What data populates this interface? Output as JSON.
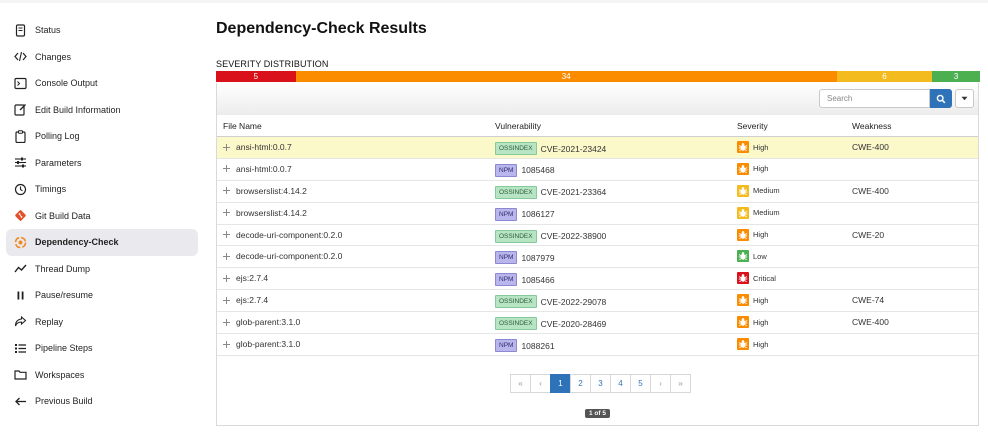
{
  "sidebar": {
    "items": [
      {
        "label": "Status",
        "icon": "document-icon"
      },
      {
        "label": "Changes",
        "icon": "code-icon"
      },
      {
        "label": "Console Output",
        "icon": "terminal-icon"
      },
      {
        "label": "Edit Build Information",
        "icon": "edit-icon"
      },
      {
        "label": "Polling Log",
        "icon": "clipboard-icon"
      },
      {
        "label": "Parameters",
        "icon": "sliders-icon"
      },
      {
        "label": "Timings",
        "icon": "clock-icon"
      },
      {
        "label": "Git Build Data",
        "icon": "git-icon"
      },
      {
        "label": "Dependency-Check",
        "icon": "dependency-check-icon",
        "active": true
      },
      {
        "label": "Thread Dump",
        "icon": "chart-line-icon"
      },
      {
        "label": "Pause/resume",
        "icon": "pause-icon"
      },
      {
        "label": "Replay",
        "icon": "replay-icon"
      },
      {
        "label": "Pipeline Steps",
        "icon": "list-icon"
      },
      {
        "label": "Workspaces",
        "icon": "folder-icon"
      },
      {
        "label": "Previous Build",
        "icon": "arrow-left-icon"
      }
    ]
  },
  "main": {
    "title": "Dependency-Check Results",
    "severity_label": "SEVERITY DISTRIBUTION",
    "severity_distribution": [
      {
        "label": "5",
        "count": 5,
        "color": "#d9111b"
      },
      {
        "label": "34",
        "count": 34,
        "color": "#fb8c00"
      },
      {
        "label": "6",
        "count": 6,
        "color": "#f4bb1f"
      },
      {
        "label": "3",
        "count": 3,
        "color": "#4caf50"
      }
    ],
    "search_placeholder": "Search",
    "columns": [
      "File Name",
      "Vulnerability",
      "Severity",
      "Weakness"
    ],
    "rows": [
      {
        "file": "ansi-html:0.0.7",
        "source": "OSSINDEX",
        "vuln": "CVE-2021-23424",
        "severity": "High",
        "weakness": "CWE-400",
        "highlight": true
      },
      {
        "file": "ansi-html:0.0.7",
        "source": "NPM",
        "vuln": "1085468",
        "severity": "High",
        "weakness": ""
      },
      {
        "file": "browserslist:4.14.2",
        "source": "OSSINDEX",
        "vuln": "CVE-2021-23364",
        "severity": "Medium",
        "weakness": "CWE-400"
      },
      {
        "file": "browserslist:4.14.2",
        "source": "NPM",
        "vuln": "1086127",
        "severity": "Medium",
        "weakness": ""
      },
      {
        "file": "decode-uri-component:0.2.0",
        "source": "OSSINDEX",
        "vuln": "CVE-2022-38900",
        "severity": "High",
        "weakness": "CWE-20"
      },
      {
        "file": "decode-uri-component:0.2.0",
        "source": "NPM",
        "vuln": "1087979",
        "severity": "Low",
        "weakness": ""
      },
      {
        "file": "ejs:2.7.4",
        "source": "NPM",
        "vuln": "1085466",
        "severity": "Critical",
        "weakness": ""
      },
      {
        "file": "ejs:2.7.4",
        "source": "OSSINDEX",
        "vuln": "CVE-2022-29078",
        "severity": "High",
        "weakness": "CWE-74"
      },
      {
        "file": "glob-parent:3.1.0",
        "source": "OSSINDEX",
        "vuln": "CVE-2020-28469",
        "severity": "High",
        "weakness": "CWE-400"
      },
      {
        "file": "glob-parent:3.1.0",
        "source": "NPM",
        "vuln": "1088261",
        "severity": "High",
        "weakness": ""
      }
    ],
    "severity_colors": {
      "Critical": "#d9111b",
      "High": "#fb8c00",
      "Medium": "#f4bb1f",
      "Low": "#4caf50"
    },
    "pagination": [
      "«",
      "‹",
      "1",
      "2",
      "3",
      "4",
      "5",
      "›",
      "»"
    ],
    "current_page": "1",
    "page_info": "1 of 5"
  }
}
